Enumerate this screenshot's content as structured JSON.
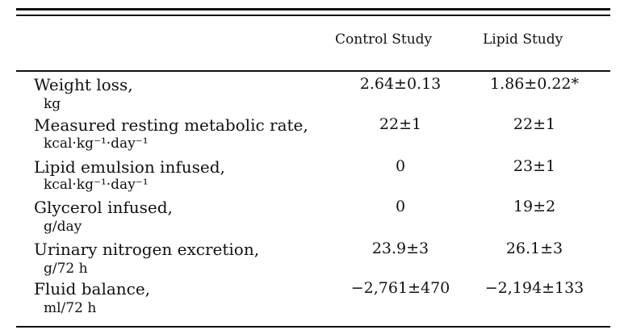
{
  "table": {
    "columns": [
      "Control Study",
      "Lipid Study"
    ],
    "rows": [
      {
        "label": "Weight loss,",
        "unit": "kg",
        "control": "2.64±0.13",
        "lipid": "1.86±0.22*"
      },
      {
        "label": "Measured resting metabolic rate,",
        "unit": "kcal·kg⁻¹·day⁻¹",
        "control": "22±1",
        "lipid": "22±1"
      },
      {
        "label": "Lipid emulsion infused,",
        "unit": "kcal·kg⁻¹·day⁻¹",
        "control": "0",
        "lipid": "23±1"
      },
      {
        "label": "Glycerol infused,",
        "unit": "g/day",
        "control": "0",
        "lipid": "19±2"
      },
      {
        "label": "Urinary nitrogen excretion,",
        "unit": "g/72 h",
        "control": "23.9±3",
        "lipid": "26.1±3"
      },
      {
        "label": "Fluid balance,",
        "unit": "ml/72 h",
        "control": "−2,761±470",
        "lipid": "−2,194±133"
      }
    ]
  }
}
